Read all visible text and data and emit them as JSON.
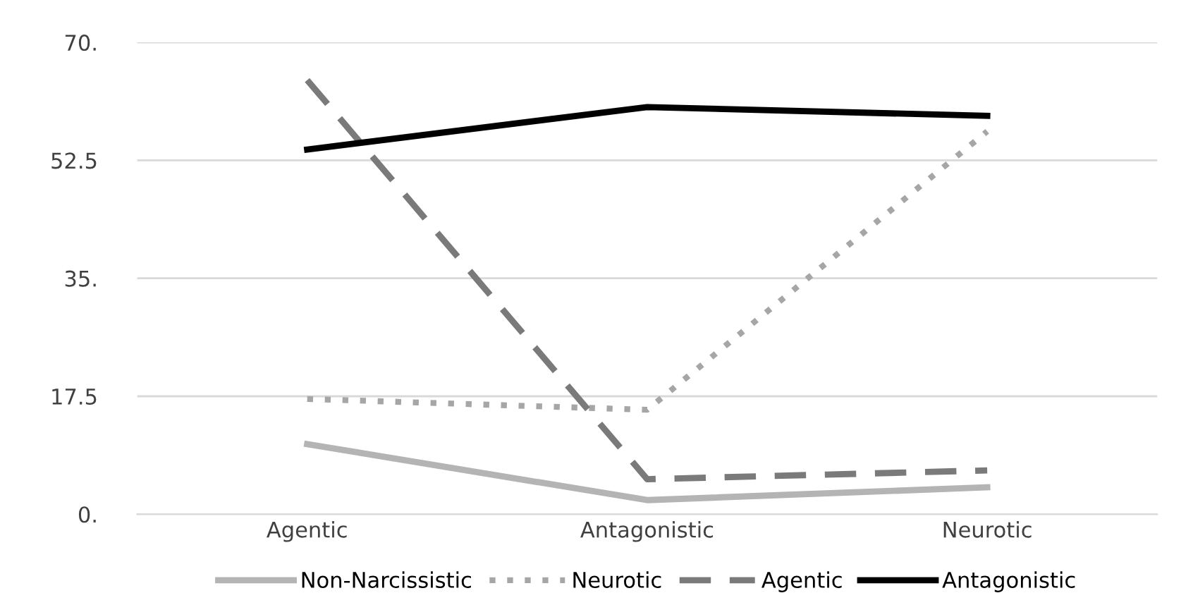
{
  "chart_data": {
    "type": "line",
    "categories": [
      "Agentic",
      "Antagonistic",
      "Neurotic"
    ],
    "series": [
      {
        "name": "Non-Narcissistic",
        "color": "#b4b4b4",
        "line_style": "solid",
        "values": [
          10.4,
          2.1,
          4.0
        ]
      },
      {
        "name": "Neurotic",
        "color": "#a6a6a6",
        "line_style": "dotted",
        "values": [
          17.1,
          15.5,
          56.8
        ]
      },
      {
        "name": "Agentic",
        "color": "#7a7a7a",
        "line_style": "dashed",
        "values": [
          64.4,
          5.2,
          6.5
        ]
      },
      {
        "name": "Antagonistic",
        "color": "#000000",
        "line_style": "solid",
        "values": [
          54.1,
          60.4,
          59.1
        ]
      }
    ],
    "ylim": [
      0,
      70
    ],
    "yticks": [
      {
        "value": 0,
        "label": "0."
      },
      17.5,
      {
        "value": 35,
        "label": "35."
      },
      52.5,
      {
        "value": 70,
        "label": "70."
      }
    ],
    "grid": "y",
    "legend": "bottom",
    "marker": "none"
  }
}
